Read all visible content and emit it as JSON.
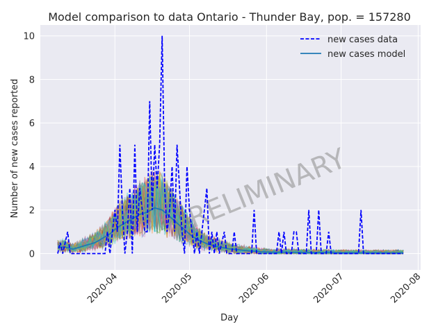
{
  "chart_data": {
    "type": "line",
    "title": "Model comparison to data Ontario - Thunder Bay, pop. = 157280",
    "xlabel": "Day",
    "ylabel": "Number of new cases reported",
    "xlim": [
      "2020-03-02",
      "2020-08-02"
    ],
    "ylim": [
      -0.75,
      10.5
    ],
    "yticks": [
      0,
      2,
      4,
      6,
      8,
      10
    ],
    "xticks": [
      "2020-04",
      "2020-05",
      "2020-06",
      "2020-07",
      "2020-08"
    ],
    "grid": true,
    "legend_position": "top-right",
    "watermark": "PRELIMINARY",
    "colors": {
      "background": "#eaeaf2",
      "data_line": "#0000ff",
      "model_line": "#1f77b4",
      "ensemble": [
        "#1f77b4",
        "#ff7f0e",
        "#2ca02c",
        "#d62728",
        "#9467bd",
        "#8c564b",
        "#e377c2",
        "#7f7f7f",
        "#bcbd22",
        "#17becf"
      ]
    },
    "series": [
      {
        "name": "new cases data",
        "style": "dashed",
        "points": [
          [
            "2020-03-09",
            0
          ],
          [
            "2020-03-10",
            0.5
          ],
          [
            "2020-03-11",
            0
          ],
          [
            "2020-03-13",
            1
          ],
          [
            "2020-03-14",
            0
          ],
          [
            "2020-03-15",
            0
          ],
          [
            "2020-03-28",
            0
          ],
          [
            "2020-03-29",
            1
          ],
          [
            "2020-03-30",
            0
          ],
          [
            "2020-03-31",
            1
          ],
          [
            "2020-04-01",
            2
          ],
          [
            "2020-04-02",
            1
          ],
          [
            "2020-04-03",
            5
          ],
          [
            "2020-04-04",
            2
          ],
          [
            "2020-04-05",
            0
          ],
          [
            "2020-04-06",
            1
          ],
          [
            "2020-04-07",
            3
          ],
          [
            "2020-04-08",
            0
          ],
          [
            "2020-04-09",
            5
          ],
          [
            "2020-04-10",
            1
          ],
          [
            "2020-04-11",
            3
          ],
          [
            "2020-04-12",
            2
          ],
          [
            "2020-04-13",
            1
          ],
          [
            "2020-04-14",
            1
          ],
          [
            "2020-04-15",
            7
          ],
          [
            "2020-04-16",
            2
          ],
          [
            "2020-04-17",
            5
          ],
          [
            "2020-04-18",
            3
          ],
          [
            "2020-04-19",
            5
          ],
          [
            "2020-04-20",
            10
          ],
          [
            "2020-04-21",
            3
          ],
          [
            "2020-04-22",
            1
          ],
          [
            "2020-04-23",
            2
          ],
          [
            "2020-04-24",
            4
          ],
          [
            "2020-04-25",
            1
          ],
          [
            "2020-04-26",
            5
          ],
          [
            "2020-04-27",
            3
          ],
          [
            "2020-04-28",
            1
          ],
          [
            "2020-04-29",
            0
          ],
          [
            "2020-04-30",
            4
          ],
          [
            "2020-05-01",
            2
          ],
          [
            "2020-05-02",
            1
          ],
          [
            "2020-05-03",
            0
          ],
          [
            "2020-05-04",
            1
          ],
          [
            "2020-05-05",
            0
          ],
          [
            "2020-05-08",
            3
          ],
          [
            "2020-05-09",
            0
          ],
          [
            "2020-05-10",
            1
          ],
          [
            "2020-05-11",
            0
          ],
          [
            "2020-05-12",
            1
          ],
          [
            "2020-05-13",
            0
          ],
          [
            "2020-05-15",
            1
          ],
          [
            "2020-05-16",
            0
          ],
          [
            "2020-05-18",
            0
          ],
          [
            "2020-05-19",
            1
          ],
          [
            "2020-05-20",
            0
          ],
          [
            "2020-05-26",
            0
          ],
          [
            "2020-05-27",
            2
          ],
          [
            "2020-05-28",
            0
          ],
          [
            "2020-06-05",
            0
          ],
          [
            "2020-06-06",
            1
          ],
          [
            "2020-06-07",
            0
          ],
          [
            "2020-06-08",
            1
          ],
          [
            "2020-06-09",
            0
          ],
          [
            "2020-06-11",
            0
          ],
          [
            "2020-06-12",
            1
          ],
          [
            "2020-06-13",
            1
          ],
          [
            "2020-06-14",
            0
          ],
          [
            "2020-06-17",
            0
          ],
          [
            "2020-06-18",
            2
          ],
          [
            "2020-06-19",
            0
          ],
          [
            "2020-06-21",
            0
          ],
          [
            "2020-06-22",
            2
          ],
          [
            "2020-06-23",
            0
          ],
          [
            "2020-06-25",
            0
          ],
          [
            "2020-06-26",
            1
          ],
          [
            "2020-06-27",
            0
          ],
          [
            "2020-07-08",
            0
          ],
          [
            "2020-07-09",
            2
          ],
          [
            "2020-07-10",
            0
          ],
          [
            "2020-07-26",
            0
          ]
        ]
      },
      {
        "name": "new cases model",
        "style": "solid",
        "points": [
          [
            "2020-03-09",
            0.3
          ],
          [
            "2020-03-12",
            0.3
          ],
          [
            "2020-03-15",
            0.2
          ],
          [
            "2020-03-18",
            0.3
          ],
          [
            "2020-03-21",
            0.4
          ],
          [
            "2020-03-24",
            0.5
          ],
          [
            "2020-03-27",
            0.7
          ],
          [
            "2020-03-30",
            0.9
          ],
          [
            "2020-04-02",
            1.2
          ],
          [
            "2020-04-05",
            1.4
          ],
          [
            "2020-04-08",
            1.6
          ],
          [
            "2020-04-11",
            1.8
          ],
          [
            "2020-04-14",
            1.9
          ],
          [
            "2020-04-17",
            2.1
          ],
          [
            "2020-04-20",
            2.0
          ],
          [
            "2020-04-23",
            1.7
          ],
          [
            "2020-04-26",
            1.4
          ],
          [
            "2020-04-29",
            1.1
          ],
          [
            "2020-05-02",
            0.8
          ],
          [
            "2020-05-05",
            0.6
          ],
          [
            "2020-05-08",
            0.45
          ],
          [
            "2020-05-11",
            0.35
          ],
          [
            "2020-05-14",
            0.28
          ],
          [
            "2020-05-17",
            0.22
          ],
          [
            "2020-05-20",
            0.18
          ],
          [
            "2020-05-25",
            0.12
          ],
          [
            "2020-05-30",
            0.08
          ],
          [
            "2020-06-05",
            0.06
          ],
          [
            "2020-06-15",
            0.05
          ],
          [
            "2020-06-25",
            0.04
          ],
          [
            "2020-07-10",
            0.03
          ],
          [
            "2020-07-26",
            0.03
          ]
        ]
      }
    ]
  }
}
